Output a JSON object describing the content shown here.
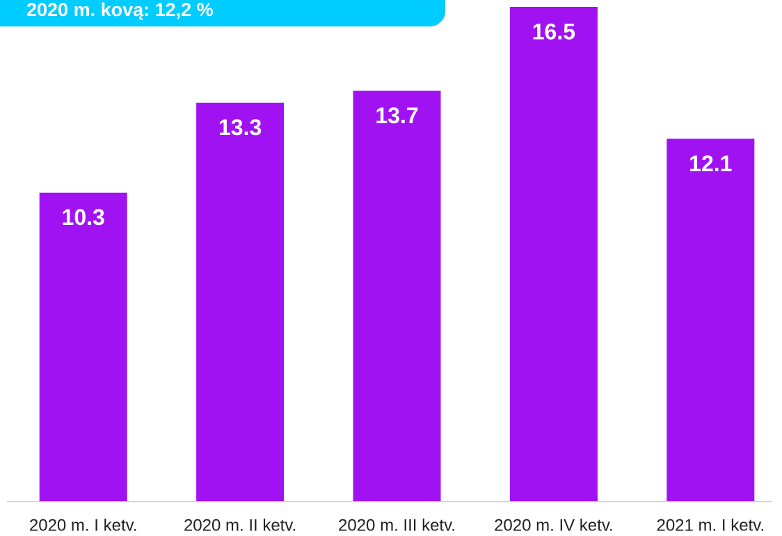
{
  "chart_data": {
    "type": "bar",
    "title": "2020 m. kovą: 12,2 %",
    "categories": [
      "2020 m. I ketv.",
      "2020 m. II ketv.",
      "2020 m. III ketv.",
      "2020 m. IV ketv.",
      "2021 m. I ketv."
    ],
    "values": [
      10.3,
      13.3,
      13.7,
      16.5,
      12.1
    ],
    "color": "#a112f2",
    "ylim": [
      0,
      16.5
    ],
    "grid": false
  }
}
